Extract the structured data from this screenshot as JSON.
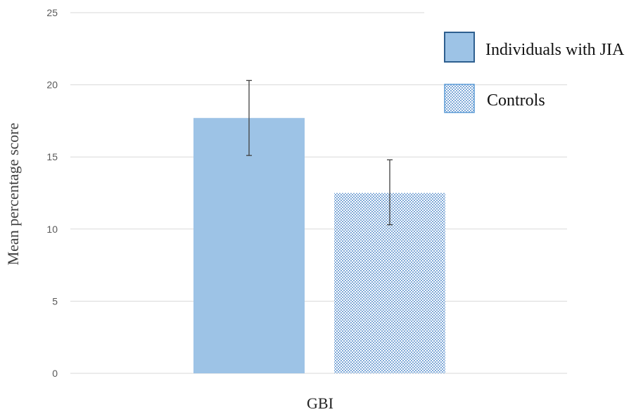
{
  "chart_data": {
    "type": "bar",
    "title": "",
    "xlabel": "",
    "ylabel": "Mean percentage score",
    "ylim": [
      0,
      25
    ],
    "yticks": [
      0,
      5,
      10,
      15,
      20,
      25
    ],
    "categories": [
      "GBI"
    ],
    "grid": true,
    "legend_position": "top-right",
    "series": [
      {
        "name": "Individuals with JIA",
        "values": [
          17.7
        ],
        "error": {
          "low": [
            15.1
          ],
          "high": [
            20.3
          ]
        },
        "color": "#9dc3e6",
        "border_color": "#2e5f8f",
        "pattern": "solid"
      },
      {
        "name": "Controls",
        "values": [
          12.5
        ],
        "error": {
          "low": [
            10.3
          ],
          "high": [
            14.8
          ]
        },
        "color": "#9dc3e6",
        "border_color": "#5b9bd5",
        "pattern": "checker"
      }
    ]
  }
}
